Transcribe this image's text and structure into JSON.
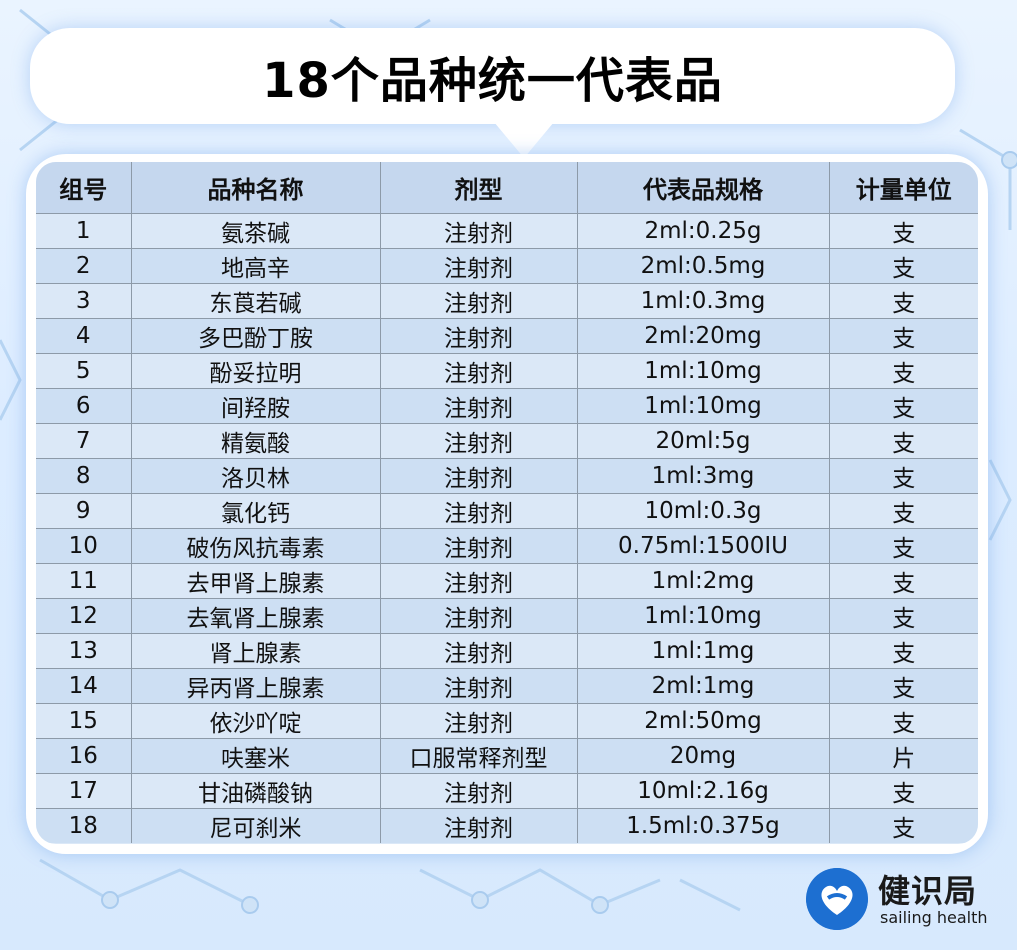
{
  "title": "18个品种统一代表品",
  "table": {
    "headers": [
      "组号",
      "品种名称",
      "剂型",
      "代表品规格",
      "计量单位"
    ],
    "rows": [
      [
        "1",
        "氨茶碱",
        "注射剂",
        "2ml:0.25g",
        "支"
      ],
      [
        "2",
        "地高辛",
        "注射剂",
        "2ml:0.5mg",
        "支"
      ],
      [
        "3",
        "东莨若碱",
        "注射剂",
        "1ml:0.3mg",
        "支"
      ],
      [
        "4",
        "多巴酚丁胺",
        "注射剂",
        "2ml:20mg",
        "支"
      ],
      [
        "5",
        "酚妥拉明",
        "注射剂",
        "1ml:10mg",
        "支"
      ],
      [
        "6",
        "间羟胺",
        "注射剂",
        "1ml:10mg",
        "支"
      ],
      [
        "7",
        "精氨酸",
        "注射剂",
        "20ml:5g",
        "支"
      ],
      [
        "8",
        "洛贝林",
        "注射剂",
        "1ml:3mg",
        "支"
      ],
      [
        "9",
        "氯化钙",
        "注射剂",
        "10ml:0.3g",
        "支"
      ],
      [
        "10",
        "破伤风抗毒素",
        "注射剂",
        "0.75ml:1500IU",
        "支"
      ],
      [
        "11",
        "去甲肾上腺素",
        "注射剂",
        "1ml:2mg",
        "支"
      ],
      [
        "12",
        "去氧肾上腺素",
        "注射剂",
        "1ml:10mg",
        "支"
      ],
      [
        "13",
        "肾上腺素",
        "注射剂",
        "1ml:1mg",
        "支"
      ],
      [
        "14",
        "异丙肾上腺素",
        "注射剂",
        "2ml:1mg",
        "支"
      ],
      [
        "15",
        "依沙吖啶",
        "注射剂",
        "2ml:50mg",
        "支"
      ],
      [
        "16",
        "呋塞米",
        "口服常释剂型",
        "20mg",
        "片"
      ],
      [
        "17",
        "甘油磷酸钠",
        "注射剂",
        "10ml:2.16g",
        "支"
      ],
      [
        "18",
        "尼可刹米",
        "注射剂",
        "1.5ml:0.375g",
        "支"
      ]
    ]
  },
  "logo": {
    "name_cn": "健识局",
    "name_en": "sailing health",
    "icon": "heart-in-circle-icon",
    "color": "#1d6fd1"
  }
}
